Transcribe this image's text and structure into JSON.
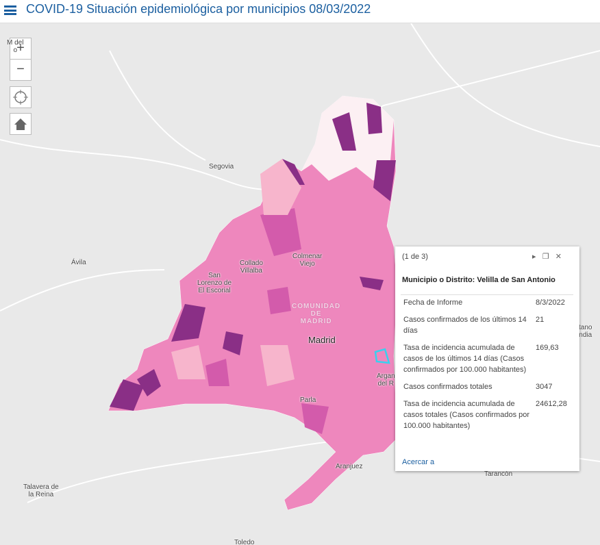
{
  "header": {
    "title": "COVID-19 Situación epidemiológica por municipios 08/03/2022"
  },
  "controls": {
    "zoom_in": "+",
    "zoom_out": "−"
  },
  "map_labels": [
    {
      "text": "M  del\n   o"
    },
    {
      "text": "Segovia"
    },
    {
      "text": "Ávila"
    },
    {
      "text": "Collado\nVillalba"
    },
    {
      "text": "Colmenar\nViejo"
    },
    {
      "text": "San\nLorenzo de\nEl Escorial"
    },
    {
      "text": "COMUNIDAD\nDE\nMADRID"
    },
    {
      "text": "Madrid"
    },
    {
      "text": "Argan\ndel R"
    },
    {
      "text": "Parla"
    },
    {
      "text": "Aranjuez"
    },
    {
      "text": "Talavera de\nla Reina"
    },
    {
      "text": "Toledo"
    },
    {
      "text": "Tarancón"
    },
    {
      "text": "tano\nndia"
    }
  ],
  "popup": {
    "pager": "(1 de 3)",
    "title": "Municipio o Distrito: Velilla de San Antonio",
    "rows": [
      [
        "Fecha de Informe",
        "8/3/2022"
      ],
      [
        "Casos confirmados de los últimos 14 días",
        "21"
      ],
      [
        "Tasa de incidencia acumulada de casos de los últimos 14 días (Casos confirmados por 100.000 habitantes)",
        "169,63"
      ],
      [
        "Casos confirmados totales",
        "3047"
      ],
      [
        "Tasa de incidencia acumulada de casos totales (Casos confirmados por 100.000 habitantes)",
        "24612,28"
      ]
    ],
    "link": "Acercar a"
  }
}
